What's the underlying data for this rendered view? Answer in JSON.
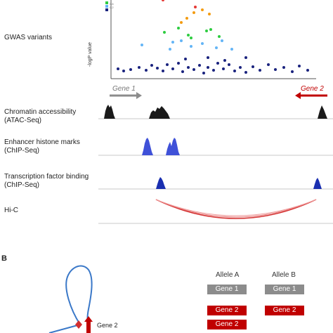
{
  "panel_a": {
    "gwas_label": "GWAS variants",
    "y_axis_label": "-logP value",
    "legend_values": [
      "",
      "0.6",
      "0.2"
    ],
    "gene1_label": "Gene 1",
    "gene2_label": "Gene 2",
    "tracks": [
      {
        "label_line1": "Chromatin accessibility",
        "label_line2": "(ATAC-Seq)"
      },
      {
        "label_line1": "Enhancer histone marks",
        "label_line2": "(ChIP-Seq)"
      },
      {
        "label_line1": "Transcription factor binding",
        "label_line2": "(ChIP-Seq)"
      },
      {
        "label_line1": "Hi-C",
        "label_line2": ""
      }
    ],
    "colors": {
      "dark_blue": "#1a237e",
      "light_blue": "#64b5f6",
      "green": "#2ecc40",
      "orange": "#f39c12",
      "red": "#e53935",
      "atac": "#1a1a1a",
      "histone": "#3f51d8",
      "tf": "#1a2fb0",
      "hic": "#d32f2f"
    }
  },
  "panel_b": {
    "letter": "B",
    "gene2_loop_label": "Gene 2",
    "allele_a_label": "Allele A",
    "allele_b_label": "Allele B",
    "allele_a_genes": [
      {
        "label": "Gene 1",
        "color": "grey"
      },
      {
        "label": "Gene 2",
        "color": "red"
      },
      {
        "label": "Gene 2",
        "color": "red"
      }
    ],
    "allele_b_genes": [
      {
        "label": "Gene 1",
        "color": "grey"
      },
      {
        "label": "Gene 2",
        "color": "red"
      }
    ]
  }
}
